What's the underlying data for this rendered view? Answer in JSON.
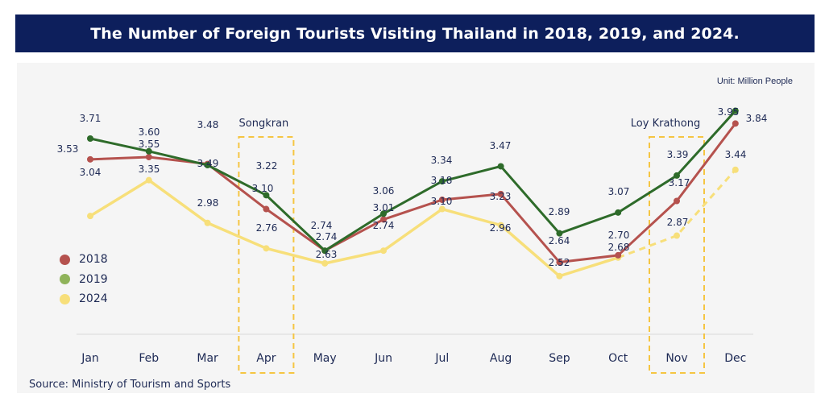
{
  "chart_data": {
    "type": "line",
    "title": "The Number of Foreign Tourists Visiting Thailand in 2018, 2019, and 2024.",
    "unit_note": "Unit: Million People",
    "source": "Source: Ministry of Tourism and Sports",
    "xlabel": "",
    "ylabel": "Million People",
    "categories": [
      "Jan",
      "Feb",
      "Mar",
      "Apr",
      "May",
      "Jun",
      "Jul",
      "Aug",
      "Sep",
      "Oct",
      "Nov",
      "Dec"
    ],
    "series": [
      {
        "name": "2018",
        "color": "#b5524e",
        "values": [
          3.53,
          3.55,
          3.49,
          3.1,
          2.74,
          3.01,
          3.18,
          3.23,
          2.64,
          2.7,
          3.17,
          3.84
        ]
      },
      {
        "name": "2019",
        "color": "#2e6b2a",
        "legend_color": "#8fb35a",
        "values": [
          3.71,
          3.6,
          3.48,
          3.22,
          2.74,
          3.06,
          3.34,
          3.47,
          2.89,
          3.07,
          3.39,
          3.95
        ]
      },
      {
        "name": "2024",
        "color": "#f7df7a",
        "values": [
          3.04,
          3.35,
          2.98,
          2.76,
          2.63,
          2.74,
          3.1,
          2.96,
          2.52,
          2.68,
          2.87,
          3.44
        ],
        "projected_from_index": 9
      }
    ],
    "annotations": [
      {
        "label": "Songkran",
        "category": "Apr"
      },
      {
        "label": "Loy Krathong",
        "category": "Nov"
      }
    ],
    "highlight_color": "#f5c542",
    "legend_position": "left",
    "grid": false
  }
}
